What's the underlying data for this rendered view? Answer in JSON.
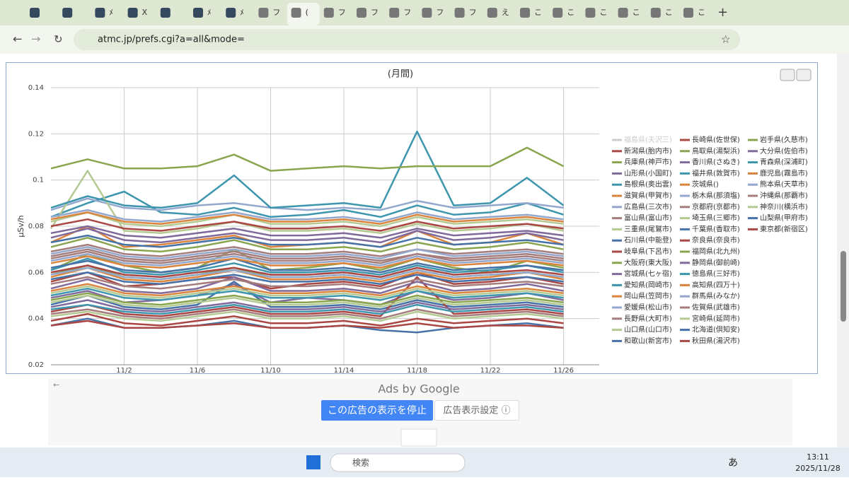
{
  "browser": {
    "tabs": [
      null,
      null,
      "ﾒ",
      "X",
      null,
      "ﾒ",
      "ﾒ",
      "フ",
      "(",
      "フ",
      "フ",
      "フ",
      "フ",
      "フ",
      "え",
      "こ",
      "こ",
      "こ",
      "こ",
      "こ",
      "こ"
    ],
    "url": "atmc.jp/prefs.cgi?a=all&mode="
  },
  "chart_data": {
    "type": "line",
    "title": "(月間)",
    "y_label": "µSv/h",
    "grid": true,
    "xlim": [
      -2,
      27.95
    ],
    "ylim": [
      0.02,
      0.14
    ],
    "xticks": [
      {
        "value": 2,
        "label": "11/2"
      },
      {
        "value": 6,
        "label": "11/6"
      },
      {
        "value": 10,
        "label": "11/10"
      },
      {
        "value": 14,
        "label": "11/14"
      },
      {
        "value": 18,
        "label": "11/18"
      },
      {
        "value": 22,
        "label": "11/22"
      },
      {
        "value": 26,
        "label": "11/26"
      }
    ],
    "yticks": [
      0.02,
      0.04,
      0.06,
      0.08,
      0.1,
      0.12,
      0.14
    ],
    "x": [
      -2,
      0,
      2,
      4,
      6,
      8,
      10,
      12,
      14,
      16,
      18,
      20,
      22,
      24,
      26
    ],
    "series": [
      {
        "name": "福島県(夫沢三)",
        "color": "#cccccc",
        "values": [
          null,
          null,
          null,
          null,
          null,
          null,
          null,
          null,
          null,
          null,
          null,
          null,
          null,
          null,
          null
        ]
      },
      {
        "name": "新潟県(胎内市)",
        "color": "#AA4643",
        "values": [
          0.056,
          0.06,
          0.054,
          0.055,
          0.057,
          0.058,
          0.053,
          0.055,
          0.056,
          0.054,
          0.06,
          0.055,
          0.056,
          0.058,
          0.055
        ]
      },
      {
        "name": "兵庫県(神戸市)",
        "color": "#89A54E",
        "values": [
          0.061,
          0.068,
          0.063,
          0.06,
          0.062,
          0.07,
          0.061,
          0.062,
          0.064,
          0.061,
          0.066,
          0.062,
          0.06,
          0.065,
          0.062
        ]
      },
      {
        "name": "山形県(小国町)",
        "color": "#80699B",
        "values": [
          0.049,
          0.052,
          0.047,
          0.048,
          0.05,
          0.055,
          0.047,
          0.049,
          0.048,
          0.046,
          0.052,
          0.048,
          0.049,
          0.051,
          0.048
        ]
      },
      {
        "name": "島根県(奥出雲)",
        "color": "#3D96AE",
        "values": [
          0.084,
          0.09,
          0.095,
          0.086,
          0.085,
          0.088,
          0.084,
          0.085,
          0.087,
          0.084,
          0.089,
          0.085,
          0.086,
          0.09,
          0.085
        ]
      },
      {
        "name": "滋賀県(甲賀市)",
        "color": "#DB843D",
        "values": [
          0.073,
          0.08,
          0.071,
          0.072,
          0.074,
          0.076,
          0.071,
          0.072,
          0.073,
          0.071,
          0.078,
          0.072,
          0.073,
          0.077,
          0.072
        ]
      },
      {
        "name": "広島県(三次市)",
        "color": "#92A8CD",
        "values": [
          0.087,
          0.092,
          0.088,
          0.087,
          0.089,
          0.09,
          0.088,
          0.087,
          0.088,
          0.087,
          0.091,
          0.088,
          0.089,
          0.09,
          0.088
        ]
      },
      {
        "name": "富山県(富山市)",
        "color": "#A47D7C",
        "values": [
          0.067,
          0.07,
          0.066,
          0.065,
          0.067,
          0.069,
          0.066,
          0.066,
          0.067,
          0.065,
          0.068,
          0.066,
          0.067,
          0.068,
          0.066
        ]
      },
      {
        "name": "三重県(尾鷲市)",
        "color": "#B5CA92",
        "values": [
          0.079,
          0.104,
          0.078,
          0.077,
          0.079,
          0.082,
          0.078,
          0.078,
          0.079,
          0.077,
          0.081,
          0.078,
          0.079,
          0.081,
          0.078
        ]
      },
      {
        "name": "石川県(中能登)",
        "color": "#4572A7",
        "values": [
          0.046,
          0.05,
          0.045,
          0.044,
          0.046,
          0.056,
          0.045,
          0.045,
          0.046,
          0.044,
          0.048,
          0.045,
          0.046,
          0.047,
          0.045
        ]
      },
      {
        "name": "岐阜県(下呂市)",
        "color": "#AA4643",
        "values": [
          0.043,
          0.046,
          0.042,
          0.041,
          0.043,
          0.045,
          0.042,
          0.042,
          0.043,
          0.041,
          0.058,
          0.042,
          0.043,
          0.044,
          0.042
        ]
      },
      {
        "name": "大阪府(東大阪)",
        "color": "#89A54E",
        "values": [
          0.059,
          0.063,
          0.058,
          0.057,
          0.059,
          0.062,
          0.058,
          0.058,
          0.059,
          0.057,
          0.061,
          0.058,
          0.059,
          0.06,
          0.058
        ]
      },
      {
        "name": "宮城県(七ヶ宿)",
        "color": "#80699B",
        "values": [
          0.053,
          0.057,
          0.052,
          0.051,
          0.053,
          0.058,
          0.052,
          0.052,
          0.053,
          0.051,
          0.056,
          0.052,
          0.053,
          0.055,
          0.052
        ]
      },
      {
        "name": "愛知県(岡崎市)",
        "color": "#3D96AE",
        "values": [
          0.061,
          0.066,
          0.06,
          0.059,
          0.061,
          0.064,
          0.06,
          0.06,
          0.061,
          0.059,
          0.063,
          0.06,
          0.061,
          0.063,
          0.06
        ]
      },
      {
        "name": "岡山県(笠岡市)",
        "color": "#DB843D",
        "values": [
          0.058,
          0.062,
          0.057,
          0.056,
          0.058,
          0.061,
          0.057,
          0.057,
          0.058,
          0.056,
          0.06,
          0.057,
          0.058,
          0.06,
          0.057
        ]
      },
      {
        "name": "愛媛県(松山市)",
        "color": "#92A8CD",
        "values": [
          0.065,
          0.068,
          0.064,
          0.063,
          0.065,
          0.067,
          0.064,
          0.064,
          0.065,
          0.063,
          0.067,
          0.064,
          0.065,
          0.066,
          0.064
        ]
      },
      {
        "name": "長野県(大町市)",
        "color": "#A47D7C",
        "values": [
          0.069,
          0.072,
          0.068,
          0.067,
          0.069,
          0.071,
          0.068,
          0.068,
          0.069,
          0.067,
          0.07,
          0.068,
          0.069,
          0.07,
          0.068
        ]
      },
      {
        "name": "山口県(山口市)",
        "color": "#B5CA92",
        "values": [
          0.082,
          0.086,
          0.081,
          0.08,
          0.082,
          0.085,
          0.081,
          0.081,
          0.082,
          0.08,
          0.084,
          0.081,
          0.082,
          0.083,
          0.081
        ]
      },
      {
        "name": "和歌山(新宮市)",
        "color": "#4572A7",
        "values": [
          0.062,
          0.065,
          0.061,
          0.06,
          0.062,
          0.066,
          0.061,
          0.061,
          0.062,
          0.06,
          0.064,
          0.061,
          0.062,
          0.063,
          0.061
        ]
      },
      {
        "name": "長崎県(佐世保)",
        "color": "#AA4643",
        "values": [
          0.039,
          0.042,
          0.038,
          0.037,
          0.039,
          0.041,
          0.038,
          0.038,
          0.039,
          0.037,
          0.04,
          0.038,
          0.039,
          0.04,
          0.038
        ]
      },
      {
        "name": "鳥取県(湯梨浜)",
        "color": "#89A54E",
        "values": [
          0.071,
          0.075,
          0.07,
          0.069,
          0.071,
          0.074,
          0.07,
          0.07,
          0.071,
          0.069,
          0.073,
          0.07,
          0.071,
          0.073,
          0.07
        ]
      },
      {
        "name": "香川県(さぬき)",
        "color": "#80699B",
        "values": [
          0.075,
          0.079,
          0.074,
          0.073,
          0.075,
          0.077,
          0.074,
          0.074,
          0.075,
          0.073,
          0.078,
          0.074,
          0.075,
          0.077,
          0.074
        ]
      },
      {
        "name": "福井県(敦賀市)",
        "color": "#3D96AE",
        "values": [
          0.088,
          0.093,
          0.089,
          0.088,
          0.09,
          0.102,
          0.088,
          0.089,
          0.09,
          0.088,
          0.121,
          0.089,
          0.09,
          0.101,
          0.089
        ]
      },
      {
        "name": "茨城県()",
        "color": "#DB843D",
        "values": [
          0.064,
          0.067,
          0.063,
          0.062,
          0.064,
          0.066,
          0.063,
          0.063,
          0.064,
          0.062,
          0.066,
          0.063,
          0.064,
          0.065,
          0.063
        ]
      },
      {
        "name": "栃木県(那須塩)",
        "color": "#92A8CD",
        "values": [
          0.084,
          0.087,
          0.083,
          0.082,
          0.084,
          0.086,
          0.083,
          0.083,
          0.084,
          0.082,
          0.086,
          0.083,
          0.084,
          0.085,
          0.083
        ]
      },
      {
        "name": "京都府(京都市)",
        "color": "#A47D7C",
        "values": [
          0.055,
          0.058,
          0.054,
          0.053,
          0.055,
          0.057,
          0.054,
          0.054,
          0.055,
          0.053,
          0.057,
          0.054,
          0.055,
          0.056,
          0.054
        ]
      },
      {
        "name": "埼玉県(三郷市)",
        "color": "#B5CA92",
        "values": [
          0.051,
          0.054,
          0.05,
          0.049,
          0.051,
          0.053,
          0.05,
          0.05,
          0.051,
          0.049,
          0.053,
          0.05,
          0.051,
          0.052,
          0.05
        ]
      },
      {
        "name": "千葉県(香取市)",
        "color": "#4572A7",
        "values": [
          0.057,
          0.06,
          0.056,
          0.055,
          0.057,
          0.059,
          0.056,
          0.056,
          0.057,
          0.055,
          0.059,
          0.056,
          0.057,
          0.058,
          0.056
        ]
      },
      {
        "name": "奈良県(奈良市)",
        "color": "#AA4643",
        "values": [
          0.06,
          0.063,
          0.059,
          0.058,
          0.06,
          0.062,
          0.059,
          0.059,
          0.06,
          0.058,
          0.062,
          0.059,
          0.06,
          0.061,
          0.059
        ]
      },
      {
        "name": "福岡県(北九州)",
        "color": "#89A54E",
        "values": [
          0.048,
          0.051,
          0.047,
          0.046,
          0.048,
          0.05,
          0.047,
          0.047,
          0.048,
          0.046,
          0.05,
          0.047,
          0.048,
          0.049,
          0.047
        ]
      },
      {
        "name": "静岡県(御前崎)",
        "color": "#80699B",
        "values": [
          0.045,
          0.048,
          0.044,
          0.043,
          0.045,
          0.047,
          0.044,
          0.044,
          0.045,
          0.043,
          0.047,
          0.044,
          0.045,
          0.046,
          0.044
        ]
      },
      {
        "name": "徳島県(三好市)",
        "color": "#3D96AE",
        "values": [
          0.044,
          0.046,
          0.043,
          0.042,
          0.044,
          0.046,
          0.043,
          0.043,
          0.044,
          0.042,
          0.046,
          0.043,
          0.044,
          0.045,
          0.043
        ]
      },
      {
        "name": "高知県(四万十)",
        "color": "#DB843D",
        "values": [
          0.052,
          0.055,
          0.051,
          0.05,
          0.052,
          0.054,
          0.051,
          0.051,
          0.052,
          0.05,
          0.054,
          0.051,
          0.052,
          0.053,
          0.051
        ]
      },
      {
        "name": "群馬県(みなか)",
        "color": "#92A8CD",
        "values": [
          0.068,
          0.071,
          0.067,
          0.066,
          0.068,
          0.07,
          0.067,
          0.067,
          0.068,
          0.066,
          0.07,
          0.067,
          0.068,
          0.069,
          0.067
        ]
      },
      {
        "name": "佐賀県(武雄市)",
        "color": "#A47D7C",
        "values": [
          0.042,
          0.044,
          0.041,
          0.04,
          0.042,
          0.044,
          0.041,
          0.041,
          0.042,
          0.04,
          0.044,
          0.041,
          0.042,
          0.043,
          0.041
        ]
      },
      {
        "name": "宮崎県(延岡市)",
        "color": "#B5CA92",
        "values": [
          0.047,
          0.05,
          0.046,
          0.045,
          0.047,
          0.049,
          0.046,
          0.046,
          0.047,
          0.045,
          0.049,
          0.046,
          0.047,
          0.048,
          0.046
        ]
      },
      {
        "name": "北海道(倶知安)",
        "color": "#4572A7",
        "values": [
          0.037,
          0.04,
          0.036,
          0.036,
          0.037,
          0.039,
          0.036,
          0.036,
          0.037,
          0.035,
          0.034,
          0.036,
          0.037,
          0.038,
          0.036
        ]
      },
      {
        "name": "秋田県(湯沢市)",
        "color": "#AA4643",
        "values": [
          0.08,
          0.083,
          0.079,
          0.078,
          0.08,
          0.082,
          0.079,
          0.079,
          0.08,
          0.078,
          0.082,
          0.079,
          0.08,
          0.081,
          0.079
        ]
      },
      {
        "name": "岩手県(久慈市)",
        "color": "#89A54E",
        "values": [
          0.105,
          0.109,
          0.105,
          0.105,
          0.106,
          0.111,
          0.104,
          0.105,
          0.106,
          0.105,
          0.106,
          0.106,
          0.106,
          0.114,
          0.106
        ]
      },
      {
        "name": "大分県(佐伯市)",
        "color": "#80699B",
        "values": [
          0.077,
          0.08,
          0.076,
          0.075,
          0.077,
          0.079,
          0.076,
          0.076,
          0.077,
          0.075,
          0.079,
          0.076,
          0.077,
          0.078,
          0.076
        ]
      },
      {
        "name": "青森県(深浦町)",
        "color": "#3D96AE",
        "values": [
          0.05,
          0.053,
          0.049,
          0.048,
          0.05,
          0.052,
          0.049,
          0.049,
          0.05,
          0.048,
          0.052,
          0.049,
          0.05,
          0.051,
          0.049
        ]
      },
      {
        "name": "鹿児島(霧島市)",
        "color": "#DB843D",
        "values": [
          0.083,
          0.086,
          0.082,
          0.081,
          0.083,
          0.085,
          0.082,
          0.082,
          0.083,
          0.081,
          0.085,
          0.082,
          0.083,
          0.084,
          0.082
        ]
      },
      {
        "name": "熊本県(天草市)",
        "color": "#92A8CD",
        "values": [
          0.059,
          0.062,
          0.058,
          0.057,
          0.059,
          0.061,
          0.058,
          0.058,
          0.059,
          0.057,
          0.061,
          0.058,
          0.059,
          0.06,
          0.058
        ]
      },
      {
        "name": "沖縄県(那覇市)",
        "color": "#A47D7C",
        "values": [
          0.066,
          0.069,
          0.065,
          0.064,
          0.066,
          0.068,
          0.065,
          0.065,
          0.066,
          0.064,
          0.068,
          0.065,
          0.066,
          0.067,
          0.065
        ]
      },
      {
        "name": "神奈川(横浜市)",
        "color": "#B5CA92",
        "values": [
          0.041,
          0.043,
          0.04,
          0.039,
          0.041,
          0.043,
          0.04,
          0.04,
          0.041,
          0.039,
          0.043,
          0.04,
          0.041,
          0.042,
          0.04
        ]
      },
      {
        "name": "山梨県(甲府市)",
        "color": "#4572A7",
        "values": [
          0.073,
          0.076,
          0.072,
          0.071,
          0.073,
          0.075,
          0.072,
          0.072,
          0.073,
          0.071,
          0.075,
          0.072,
          0.073,
          0.074,
          0.072
        ]
      },
      {
        "name": "東京都(新宿区)",
        "color": "#AA4643",
        "values": [
          0.037,
          0.039,
          0.036,
          0.036,
          0.037,
          0.038,
          0.036,
          0.036,
          0.037,
          0.036,
          0.038,
          0.036,
          0.037,
          0.037,
          0.036
        ]
      }
    ]
  },
  "ads": {
    "label": "Ads by Google",
    "stop_button": "この広告の表示を停止",
    "settings_button": "広告表示設定 ⓘ"
  },
  "taskbar": {
    "search": "検索",
    "ime": "あ",
    "time": "13:11",
    "date": "2025/11/28"
  }
}
